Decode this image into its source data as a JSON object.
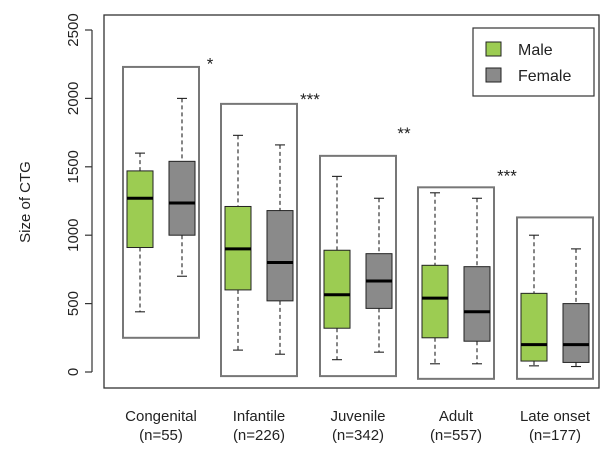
{
  "chart_data": {
    "type": "boxplot",
    "ylabel": "Size of CTG",
    "ylim": [
      0,
      2500
    ],
    "yticks": [
      0,
      500,
      1000,
      1500,
      2000,
      2500
    ],
    "legend": {
      "position": "top-right",
      "items": [
        {
          "label": "Male",
          "color": "#9ccc52"
        },
        {
          "label": "Female",
          "color": "#8a8a8a"
        }
      ]
    },
    "groups": [
      {
        "label": "Congenital",
        "n": "(n=55)",
        "male": {
          "min": 440,
          "q1": 910,
          "median": 1270,
          "q3": 1470,
          "max": 1600
        },
        "female": {
          "min": 700,
          "q1": 1000,
          "median": 1235,
          "q3": 1540,
          "max": 2000
        }
      },
      {
        "label": "Infantile",
        "n": "(n=226)",
        "male": {
          "min": 160,
          "q1": 600,
          "median": 900,
          "q3": 1210,
          "max": 1730
        },
        "female": {
          "min": 130,
          "q1": 520,
          "median": 800,
          "q3": 1180,
          "max": 1660
        }
      },
      {
        "label": "Juvenile",
        "n": "(n=342)",
        "male": {
          "min": 90,
          "q1": 320,
          "median": 565,
          "q3": 890,
          "max": 1430
        },
        "female": {
          "min": 145,
          "q1": 465,
          "median": 665,
          "q3": 865,
          "max": 1270
        }
      },
      {
        "label": "Adult",
        "n": "(n=557)",
        "male": {
          "min": 60,
          "q1": 250,
          "median": 540,
          "q3": 780,
          "max": 1310
        },
        "female": {
          "min": 60,
          "q1": 225,
          "median": 440,
          "q3": 770,
          "max": 1270
        }
      },
      {
        "label": "Late onset",
        "n": "(n=177)",
        "male": {
          "min": 45,
          "q1": 80,
          "median": 200,
          "q3": 575,
          "max": 1000
        },
        "female": {
          "min": 40,
          "q1": 70,
          "median": 200,
          "q3": 500,
          "max": 900
        }
      }
    ],
    "group_frames": [
      {
        "ymin": 250,
        "ymax": 2230
      },
      {
        "ymin": -30,
        "ymax": 1960
      },
      {
        "ymin": -30,
        "ymax": 1580
      },
      {
        "ymin": -50,
        "ymax": 1350
      },
      {
        "ymin": -50,
        "ymax": 1130
      }
    ],
    "annotations": [
      {
        "text": "*",
        "between": [
          0,
          1
        ],
        "y": 2270
      },
      {
        "text": "***",
        "between": [
          1,
          2
        ],
        "y": 2010
      },
      {
        "text": "**",
        "between": [
          2,
          3
        ],
        "y": 1760
      },
      {
        "text": "***",
        "between": [
          3,
          4
        ],
        "y": 1450
      }
    ]
  }
}
